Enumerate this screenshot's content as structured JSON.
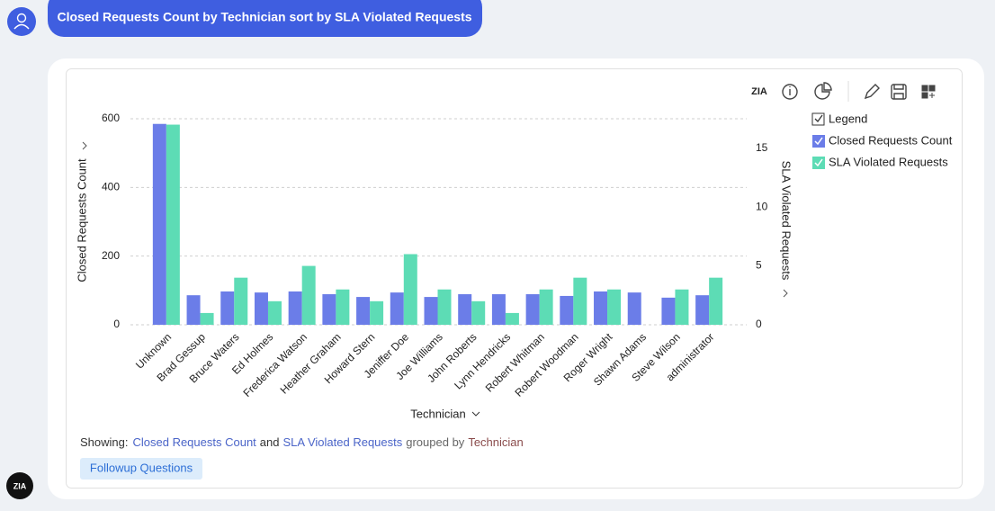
{
  "query": "Closed Requests Count by Technician sort by SLA Violated Requests",
  "chart_data": {
    "type": "bar",
    "categories": [
      "Unknown",
      "Brad Gessup",
      "Bruce Waters",
      "Ed Holmes",
      "Frederica Watson",
      "Heather Graham",
      "Howard Stern",
      "Jeniffer Doe",
      "Joe Williams",
      "John Roberts",
      "Lynn Hendricks",
      "Robert Whitman",
      "Robert Woodman",
      "Roger Wright",
      "Shawn Adams",
      "Steve Wilson",
      "administrator"
    ],
    "series": [
      {
        "name": "Closed Requests Count",
        "color": "#6b7de8",
        "values": [
          585,
          86,
          97,
          94,
          97,
          89,
          81,
          94,
          81,
          89,
          89,
          89,
          84,
          97,
          94,
          79,
          86
        ]
      },
      {
        "name": "SLA Violated Requests",
        "color": "#5ddcb5",
        "axis": "y2",
        "values": [
          17,
          1,
          4,
          2,
          5,
          3,
          2,
          6,
          3,
          2,
          1,
          3,
          4,
          3,
          0,
          3,
          4
        ]
      }
    ],
    "xlabel": "Technician",
    "ylabel": "Closed Requests Count",
    "y2label": "SLA Violated Requests",
    "ylim": [
      0,
      600
    ],
    "yticks": [
      0,
      200,
      400,
      600
    ],
    "y2lim": [
      0,
      17.5
    ],
    "y2ticks": [
      0,
      5,
      10,
      15
    ],
    "grid": true,
    "legend_title": "Legend",
    "legend": "right"
  },
  "summary": {
    "prefix": "Showing:",
    "measure1": "Closed Requests Count",
    "joiner": "and",
    "measure2": "SLA Violated Requests",
    "grouped": "grouped by",
    "dimension": "Technician"
  },
  "followup": "Followup Questions"
}
